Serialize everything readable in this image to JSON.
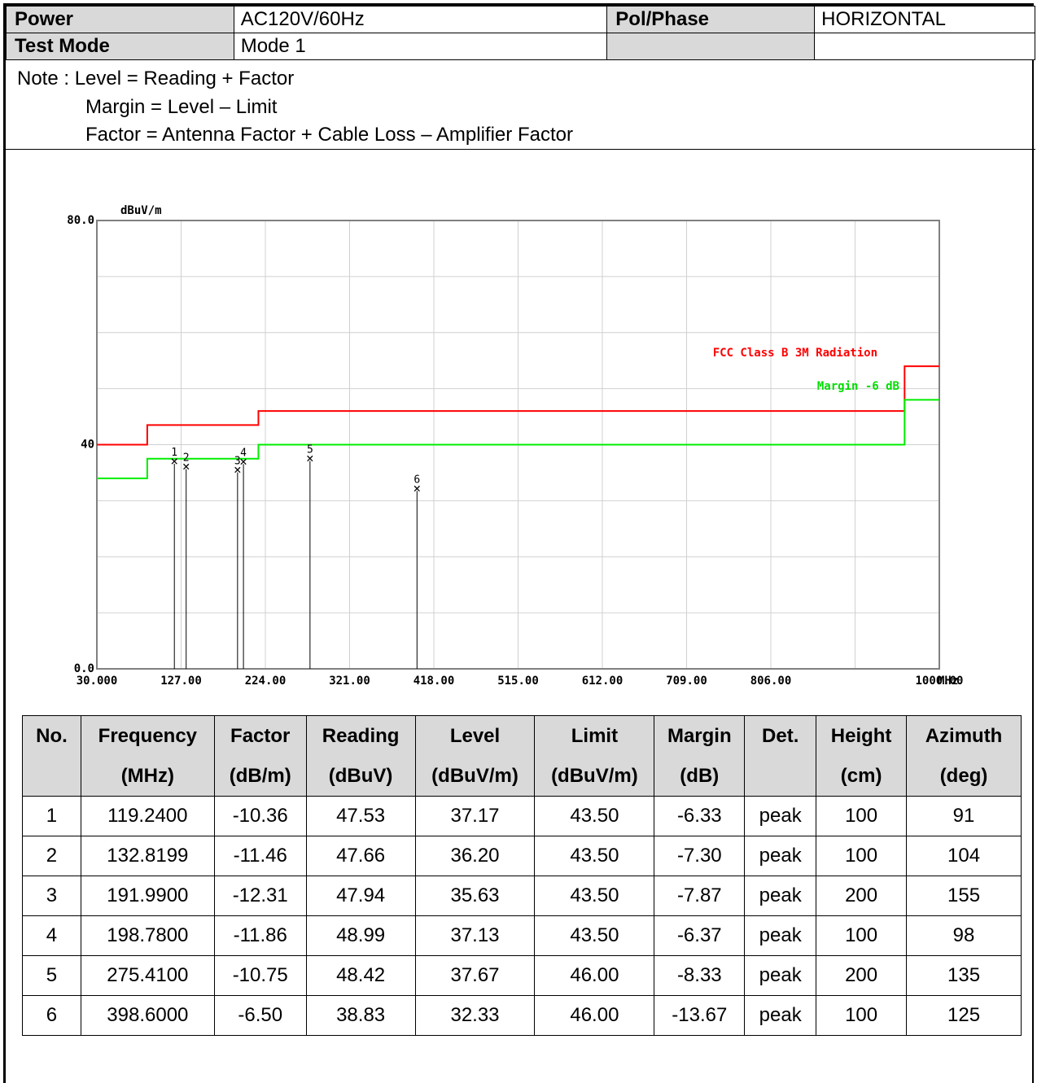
{
  "header": {
    "power_label": "Power",
    "power_value": "AC120V/60Hz",
    "pol_label": "Pol/Phase",
    "pol_value": "HORIZONTAL",
    "mode_label": "Test Mode",
    "mode_value": "Mode 1"
  },
  "notes": [
    "Note : Level = Reading + Factor",
    "Margin = Level – Limit",
    "Factor = Antenna Factor + Cable Loss – Amplifier Factor"
  ],
  "chart_data": {
    "type": "line",
    "ylabel": "dBuV/m",
    "xlabel": "MHz",
    "xlim": [
      30,
      1000
    ],
    "ylim": [
      0,
      80
    ],
    "y_tick_labels": [
      "80.0",
      "40",
      "0.0"
    ],
    "y_ticks": [
      80,
      40,
      0
    ],
    "x_tick_labels": [
      "30.000",
      "127.00",
      "224.00",
      "321.00",
      "418.00",
      "515.00",
      "612.00",
      "709.00",
      "806.00",
      "1000.00"
    ],
    "x_ticks": [
      30,
      127,
      224,
      321,
      418,
      515,
      612,
      709,
      806,
      1000
    ],
    "grid": true,
    "series": [
      {
        "name": "FCC Class B 3M Radiation",
        "color": "#ff0000",
        "x": [
          30,
          88,
          88,
          216,
          216,
          960,
          960,
          1000
        ],
        "y": [
          40,
          40,
          43.5,
          43.5,
          46,
          46,
          54,
          54
        ]
      },
      {
        "name": "Margin -6 dB",
        "color": "#00ee00",
        "x": [
          30,
          88,
          88,
          216,
          216,
          960,
          960,
          1000
        ],
        "y": [
          34,
          34,
          37.5,
          37.5,
          40,
          40,
          48,
          48
        ]
      }
    ],
    "markers": [
      {
        "label": "1",
        "x": 119.24,
        "y": 37.17
      },
      {
        "label": "2",
        "x": 132.8199,
        "y": 36.2
      },
      {
        "label": "3",
        "x": 191.99,
        "y": 35.63
      },
      {
        "label": "4",
        "x": 198.78,
        "y": 37.13
      },
      {
        "label": "5",
        "x": 275.41,
        "y": 37.67
      },
      {
        "label": "6",
        "x": 398.6,
        "y": 32.33
      }
    ]
  },
  "table": {
    "headers_top": [
      "No.",
      "Frequency",
      "Factor",
      "Reading",
      "Level",
      "Limit",
      "Margin",
      "Det.",
      "Height",
      "Azimuth"
    ],
    "headers_bottom": [
      "",
      "(MHz)",
      "(dB/m)",
      "(dBuV)",
      "(dBuV/m)",
      "(dBuV/m)",
      "(dB)",
      "",
      "(cm)",
      "(deg)"
    ],
    "rows": [
      [
        "1",
        "119.2400",
        "-10.36",
        "47.53",
        "37.17",
        "43.50",
        "-6.33",
        "peak",
        "100",
        "91"
      ],
      [
        "2",
        "132.8199",
        "-11.46",
        "47.66",
        "36.20",
        "43.50",
        "-7.30",
        "peak",
        "100",
        "104"
      ],
      [
        "3",
        "191.9900",
        "-12.31",
        "47.94",
        "35.63",
        "43.50",
        "-7.87",
        "peak",
        "200",
        "155"
      ],
      [
        "4",
        "198.7800",
        "-11.86",
        "48.99",
        "37.13",
        "43.50",
        "-6.37",
        "peak",
        "100",
        "98"
      ],
      [
        "5",
        "275.4100",
        "-10.75",
        "48.42",
        "37.67",
        "46.00",
        "-8.33",
        "peak",
        "200",
        "135"
      ],
      [
        "6",
        "398.6000",
        "-6.50",
        "38.83",
        "32.33",
        "46.00",
        "-13.67",
        "peak",
        "100",
        "125"
      ]
    ]
  }
}
